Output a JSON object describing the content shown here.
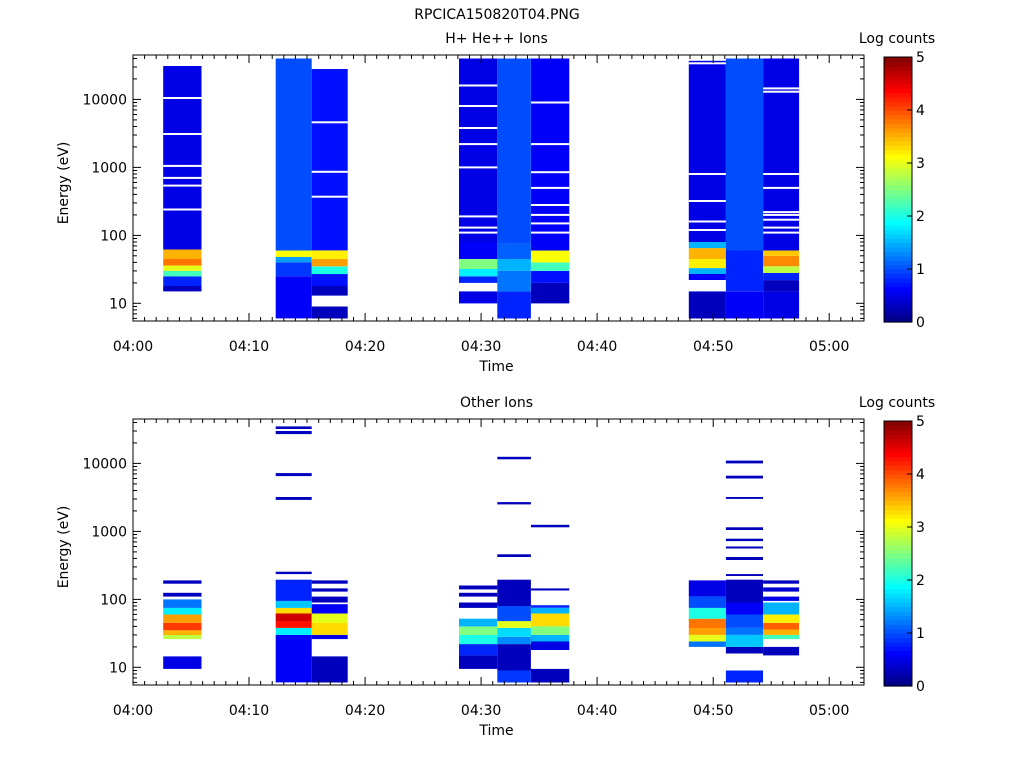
{
  "figure_title": "RPCICA150820T04.PNG",
  "chart_data": [
    {
      "type": "heatmap",
      "title": "H+ He++ Ions",
      "xlabel": "Time",
      "ylabel": "Energy (eV)",
      "yscale": "log",
      "ylim": [
        5.5,
        45000
      ],
      "xlim": [
        "04:00",
        "05:03"
      ],
      "x_ticks": [
        "04:00",
        "04:10",
        "04:20",
        "04:30",
        "04:40",
        "04:50",
        "05:00"
      ],
      "y_ticks": [
        "10",
        "100",
        "1000",
        "10000"
      ],
      "colorbar": {
        "label": "Log counts",
        "range": [
          0,
          5
        ],
        "ticks": [
          "0",
          "1",
          "2",
          "3",
          "4",
          "5"
        ],
        "colormap": "jet"
      },
      "columns": [
        {
          "start": "04:02.6",
          "end": "04:05.9",
          "bands": [
            [
              15,
              18,
              0.3
            ],
            [
              18,
              25,
              0.8
            ],
            [
              25,
              30,
              2.2
            ],
            [
              30,
              36,
              3.0
            ],
            [
              36,
              45,
              3.8
            ],
            [
              45,
              62,
              3.5
            ],
            [
              62,
              31000,
              0.5
            ]
          ]
        },
        {
          "start": "04:12.3",
          "end": "04:15.4",
          "bands": [
            [
              6,
              25,
              0.6
            ],
            [
              25,
              40,
              0.9
            ],
            [
              40,
              48,
              1.4
            ],
            [
              48,
              60,
              3.1
            ],
            [
              60,
              40000,
              1.0
            ]
          ]
        },
        {
          "start": "04:15.4",
          "end": "04:18.5",
          "bands": [
            [
              6,
              9,
              0.3
            ],
            [
              13,
              18,
              0.3
            ],
            [
              18,
              27,
              0.7
            ],
            [
              27,
              35,
              2.0
            ],
            [
              35,
              45,
              3.6
            ],
            [
              45,
              60,
              3.2
            ],
            [
              60,
              28000,
              0.7
            ]
          ]
        },
        {
          "start": "04:28.1",
          "end": "04:31.4",
          "bands": [
            [
              10,
              15,
              0.5
            ],
            [
              20,
              25,
              0.8
            ],
            [
              25,
              32,
              1.8
            ],
            [
              32,
              45,
              2.5
            ],
            [
              45,
              80,
              0.6
            ],
            [
              80,
              40000,
              0.5
            ]
          ]
        },
        {
          "start": "04:31.4",
          "end": "04:34.3",
          "bands": [
            [
              6,
              15,
              0.8
            ],
            [
              15,
              30,
              1.2
            ],
            [
              30,
              45,
              1.5
            ],
            [
              45,
              75,
              1.1
            ],
            [
              75,
              40000,
              1.0
            ]
          ]
        },
        {
          "start": "04:34.3",
          "end": "04:37.6",
          "bands": [
            [
              10,
              20,
              0.3
            ],
            [
              20,
              30,
              0.7
            ],
            [
              30,
              40,
              2.2
            ],
            [
              40,
              60,
              3.1
            ],
            [
              60,
              40000,
              0.6
            ]
          ]
        },
        {
          "start": "04:47.9",
          "end": "04:51.1",
          "bands": [
            [
              6,
              15,
              0.3
            ],
            [
              22,
              27,
              0.6
            ],
            [
              27,
              33,
              1.5
            ],
            [
              33,
              45,
              3.2
            ],
            [
              45,
              65,
              3.5
            ],
            [
              65,
              80,
              1.5
            ],
            [
              80,
              37000,
              0.5
            ]
          ]
        },
        {
          "start": "04:51.1",
          "end": "04:54.3",
          "bands": [
            [
              6,
              15,
              0.6
            ],
            [
              15,
              60,
              0.8
            ],
            [
              60,
              40000,
              1.0
            ]
          ]
        },
        {
          "start": "04:54.3",
          "end": "04:57.4",
          "bands": [
            [
              6,
              15,
              0.5
            ],
            [
              15,
              22,
              0.3
            ],
            [
              22,
              28,
              0.8
            ],
            [
              28,
              35,
              2.8
            ],
            [
              35,
              50,
              3.7
            ],
            [
              50,
              60,
              3.4
            ],
            [
              60,
              40000,
              0.5
            ]
          ]
        }
      ],
      "gaps": [
        {
          "col": 0,
          "energies": [
            240,
            540,
            700,
            1050,
            3100,
            10500
          ]
        },
        {
          "col": 2,
          "energies": [
            370,
            860,
            4600
          ]
        },
        {
          "col": 3,
          "energies": [
            110,
            130,
            190,
            1000,
            2200,
            3800,
            8000,
            16000
          ]
        },
        {
          "col": 5,
          "energies": [
            110,
            150,
            200,
            280,
            500,
            850,
            2200,
            9000
          ]
        },
        {
          "col": 6,
          "energies": [
            120,
            160,
            320,
            800,
            34000
          ]
        },
        {
          "col": 8,
          "energies": [
            110,
            130,
            170,
            200,
            220,
            500,
            800,
            13000,
            14500
          ]
        }
      ]
    },
    {
      "type": "heatmap",
      "title": "Other Ions",
      "xlabel": "Time",
      "ylabel": "Energy (eV)",
      "yscale": "log",
      "ylim": [
        5.5,
        45000
      ],
      "xlim": [
        "04:00",
        "05:03"
      ],
      "x_ticks": [
        "04:00",
        "04:10",
        "04:20",
        "04:30",
        "04:40",
        "04:50",
        "05:00"
      ],
      "y_ticks": [
        "10",
        "100",
        "1000",
        "10000"
      ],
      "colorbar": {
        "label": "Log counts",
        "range": [
          0,
          5
        ],
        "ticks": [
          "0",
          "1",
          "2",
          "3",
          "4",
          "5"
        ],
        "colormap": "jet"
      },
      "columns": [
        {
          "start": "04:02.6",
          "end": "04:05.9",
          "bands": [
            [
              9.5,
              14.5,
              0.5
            ],
            [
              26,
              30,
              2.8
            ],
            [
              30,
              35,
              3.5
            ],
            [
              35,
              45,
              4.1
            ],
            [
              45,
              60,
              3.6
            ],
            [
              60,
              75,
              1.8
            ],
            [
              75,
              100,
              1.2
            ],
            [
              110,
              125,
              0.3
            ],
            [
              170,
              190,
              0.3
            ]
          ]
        },
        {
          "start": "04:12.3",
          "end": "04:15.4",
          "bands": [
            [
              6,
              30,
              0.6
            ],
            [
              30,
              38,
              1.8
            ],
            [
              38,
              48,
              4.3
            ],
            [
              48,
              62,
              4.6
            ],
            [
              62,
              75,
              3.3
            ],
            [
              75,
              95,
              1.6
            ],
            [
              95,
              195,
              0.8
            ],
            [
              235,
              255,
              0.3
            ],
            [
              2900,
              3200,
              0.3
            ],
            [
              6500,
              7200,
              0.3
            ],
            [
              27000,
              30000,
              0.3
            ],
            [
              32000,
              35000,
              0.3
            ]
          ]
        },
        {
          "start": "04:15.4",
          "end": "04:18.5",
          "bands": [
            [
              6,
              14.5,
              0.3
            ],
            [
              26,
              30,
              0.5
            ],
            [
              30,
              45,
              3.3
            ],
            [
              45,
              62,
              3.0
            ],
            [
              62,
              85,
              0.6
            ],
            [
              90,
              110,
              0.3
            ],
            [
              130,
              145,
              0.3
            ],
            [
              170,
              190,
              0.3
            ]
          ]
        },
        {
          "start": "04:28.1",
          "end": "04:31.4",
          "bands": [
            [
              9.5,
              15,
              0.3
            ],
            [
              15,
              22,
              0.8
            ],
            [
              22,
              30,
              2.0
            ],
            [
              30,
              40,
              2.5
            ],
            [
              40,
              52,
              1.5
            ],
            [
              75,
              90,
              0.3
            ],
            [
              110,
              125,
              0.3
            ],
            [
              140,
              160,
              0.3
            ]
          ]
        },
        {
          "start": "04:31.4",
          "end": "04:34.3",
          "bands": [
            [
              6,
              9,
              0.9
            ],
            [
              9,
              16,
              0.3
            ],
            [
              16,
              22,
              0.3
            ],
            [
              22,
              28,
              1.3
            ],
            [
              28,
              38,
              1.7
            ],
            [
              38,
              48,
              3.0
            ],
            [
              48,
              80,
              1.0
            ],
            [
              80,
              195,
              0.3
            ],
            [
              420,
              460,
              0.3
            ],
            [
              2500,
              2700,
              0.3
            ],
            [
              11500,
              12500,
              0.3
            ]
          ]
        },
        {
          "start": "04:34.3",
          "end": "04:37.6",
          "bands": [
            [
              6,
              9.5,
              0.3
            ],
            [
              18,
              24,
              0.5
            ],
            [
              24,
              30,
              1.5
            ],
            [
              30,
              40,
              2.5
            ],
            [
              40,
              62,
              3.3
            ],
            [
              62,
              75,
              1.5
            ],
            [
              75,
              82,
              0.8
            ],
            [
              135,
              145,
              0.3
            ],
            [
              1150,
              1250,
              0.3
            ]
          ]
        },
        {
          "start": "04:47.9",
          "end": "04:51.1",
          "bands": [
            [
              20,
              24,
              1.2
            ],
            [
              24,
              30,
              3.0
            ],
            [
              30,
              38,
              3.6
            ],
            [
              38,
              52,
              3.8
            ],
            [
              52,
              75,
              2.0
            ],
            [
              75,
              110,
              1.0
            ],
            [
              110,
              190,
              0.5
            ]
          ]
        },
        {
          "start": "04:51.1",
          "end": "04:54.3",
          "bands": [
            [
              6,
              9,
              0.8
            ],
            [
              16,
              20,
              0.3
            ],
            [
              20,
              30,
              1.6
            ],
            [
              30,
              38,
              1.2
            ],
            [
              38,
              60,
              1.0
            ],
            [
              60,
              90,
              0.6
            ],
            [
              90,
              195,
              0.3
            ],
            [
              220,
              235,
              0.3
            ],
            [
              380,
              420,
              0.3
            ],
            [
              560,
              600,
              0.3
            ],
            [
              720,
              780,
              0.3
            ],
            [
              1050,
              1150,
              0.3
            ],
            [
              3000,
              3200,
              0.3
            ],
            [
              6000,
              6600,
              0.3
            ],
            [
              10000,
              11000,
              0.3
            ]
          ]
        },
        {
          "start": "04:54.3",
          "end": "04:57.4",
          "bands": [
            [
              15,
              20,
              0.3
            ],
            [
              26,
              30,
              2.2
            ],
            [
              30,
              36,
              3.5
            ],
            [
              36,
              45,
              3.9
            ],
            [
              45,
              60,
              3.2
            ],
            [
              60,
              90,
              1.5
            ],
            [
              95,
              110,
              0.5
            ],
            [
              130,
              150,
              0.4
            ],
            [
              170,
              190,
              0.3
            ]
          ]
        }
      ],
      "gaps": []
    }
  ]
}
